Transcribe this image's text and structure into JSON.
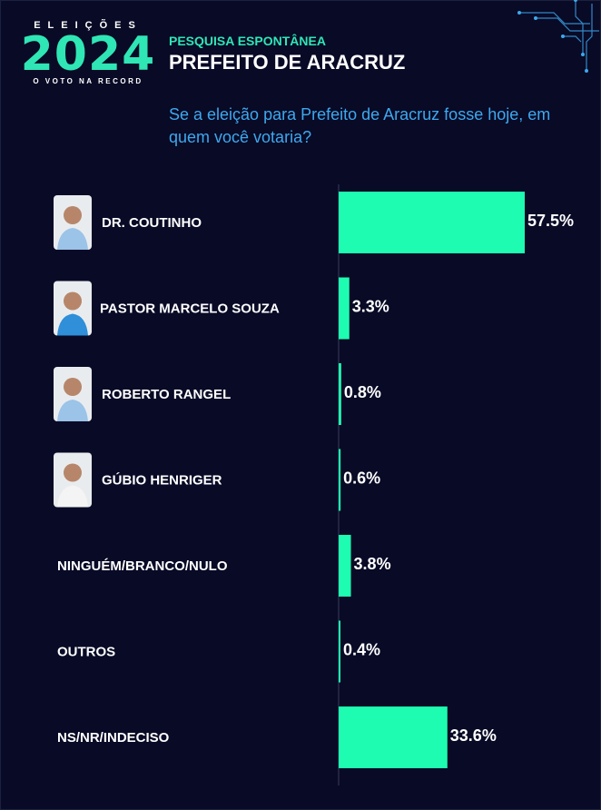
{
  "logo": {
    "top": "ELEIÇÕES",
    "year": "2024",
    "bottom": "O VOTO NA RECORD"
  },
  "header": {
    "subtitle": "PESQUISA ESPONTÂNEA",
    "title": "PREFEITO DE ARACRUZ",
    "question": "Se a eleição para Prefeito de Aracruz fosse hoje, em quem você votaria?"
  },
  "colors": {
    "background": "#080a26",
    "bar": "#1dfcb0",
    "accent": "#2fe6b5",
    "question": "#3ea8ee"
  },
  "chart_data": {
    "type": "bar",
    "orientation": "horizontal",
    "categories": [
      "DR. COUTINHO",
      "PASTOR MARCELO SOUZA",
      "ROBERTO RANGEL",
      "GÚBIO HENRIGER",
      "NINGUÉM/BRANCO/NULO",
      "OUTROS",
      "NS/NR/INDECISO"
    ],
    "values": [
      57.5,
      3.3,
      0.8,
      0.6,
      3.8,
      0.4,
      33.6
    ],
    "value_labels": [
      "57.5%",
      "3.3%",
      "0.8%",
      "0.6%",
      "3.8%",
      "0.4%",
      "33.6%"
    ],
    "has_photo": [
      true,
      true,
      true,
      true,
      false,
      false,
      false
    ],
    "unit": "%",
    "xlim": [
      0,
      57.5
    ]
  }
}
